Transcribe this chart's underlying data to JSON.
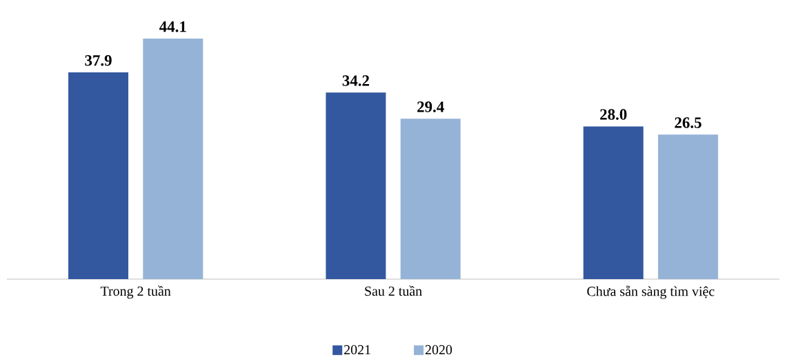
{
  "chart_data": {
    "type": "bar",
    "categories": [
      "Trong 2 tuần",
      "Sau 2 tuần",
      "Chưa sẵn sàng tìm việc"
    ],
    "series": [
      {
        "name": "2021",
        "color": "#3358a0",
        "values": [
          37.9,
          34.2,
          28.0
        ],
        "value_labels": [
          "37.9",
          "34.2",
          "28.0"
        ]
      },
      {
        "name": "2020",
        "color": "#95b3d7",
        "values": [
          44.1,
          29.4,
          26.5
        ],
        "value_labels": [
          "44.1",
          "29.4",
          "26.5"
        ]
      }
    ],
    "legend": "bottom",
    "grid": false
  }
}
